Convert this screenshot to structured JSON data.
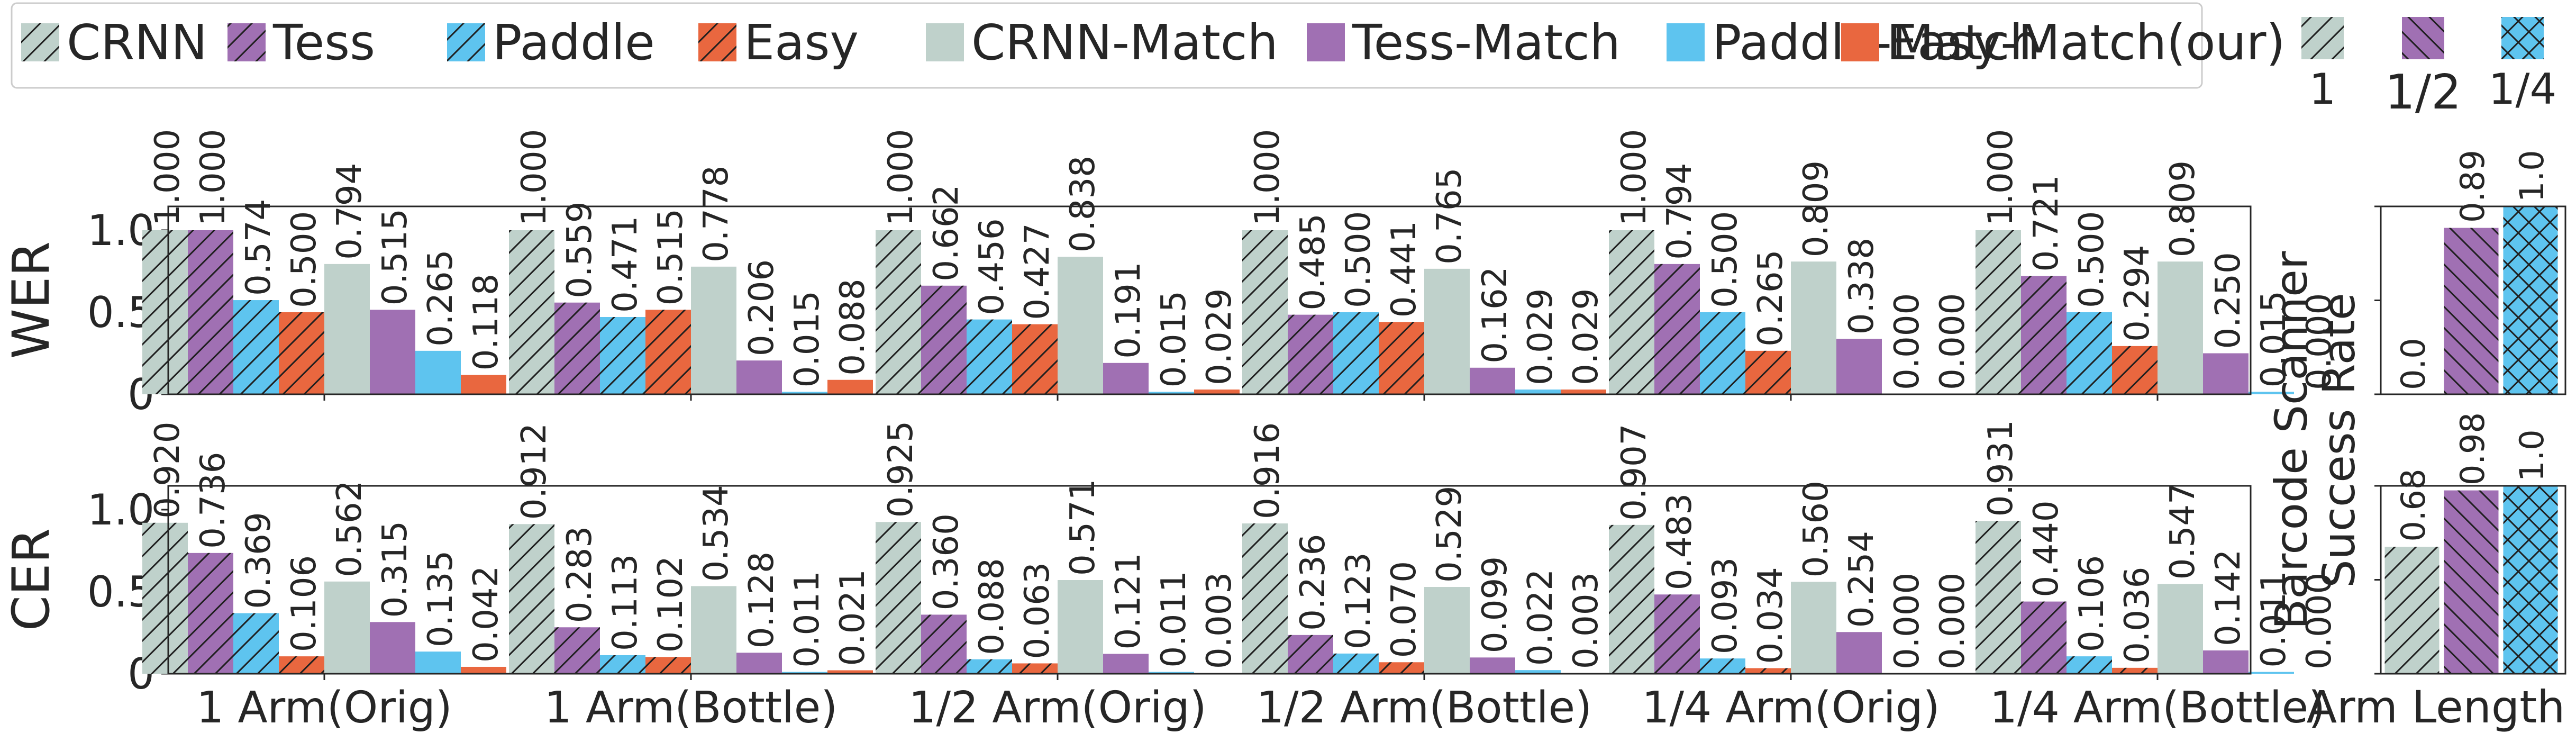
{
  "legend": [
    {
      "name": "CRNN",
      "color": "#bfd1cb",
      "hatch": "fwd"
    },
    {
      "name": "Tess",
      "color": "#a070b3",
      "hatch": "fwd"
    },
    {
      "name": "Paddle",
      "color": "#5ec4ef",
      "hatch": "fwd"
    },
    {
      "name": "Easy",
      "color": "#e9673f",
      "hatch": "fwd"
    },
    {
      "name": "CRNN-Match",
      "color": "#bfd1cb",
      "hatch": "none"
    },
    {
      "name": "Tess-Match",
      "color": "#a070b3",
      "hatch": "none"
    },
    {
      "name": "Paddle-Match",
      "color": "#5ec4ef",
      "hatch": "none"
    },
    {
      "name": "Easy-Match(our)",
      "color": "#e9673f",
      "hatch": "none"
    }
  ],
  "side_legend": [
    {
      "name": "1",
      "color": "#bfd1cb",
      "hatch": "fwd"
    },
    {
      "name": "1/2",
      "color": "#a070b3",
      "hatch": "back"
    },
    {
      "name": "1/4",
      "color": "#5ec4ef",
      "hatch": "cross"
    }
  ],
  "chart_data": [
    {
      "type": "bar",
      "ylabel": "WER",
      "ylim": [
        0,
        1.0
      ],
      "yticks": [
        "0",
        "0.5",
        "1.0"
      ],
      "categories": [
        "1 Arm(Orig)",
        "1 Arm(Bottle)",
        "1/2 Arm(Orig)",
        "1/2 Arm(Bottle)",
        "1/4 Arm(Orig)",
        "1/4 Arm(Bottle)"
      ],
      "series": [
        {
          "name": "CRNN",
          "values": [
            1.0,
            1.0,
            1.0,
            1.0,
            1.0,
            1.0
          ],
          "labels": [
            "1.000",
            "1.000",
            "1.000",
            "1.000",
            "1.000",
            "1.000"
          ]
        },
        {
          "name": "Tess",
          "values": [
            1.0,
            0.559,
            0.662,
            0.485,
            0.794,
            0.721
          ],
          "labels": [
            "1.000",
            "0.559",
            "0.662",
            "0.485",
            "0.794",
            "0.721"
          ]
        },
        {
          "name": "Paddle",
          "values": [
            0.574,
            0.471,
            0.456,
            0.5,
            0.5,
            0.5
          ],
          "labels": [
            "0.574",
            "0.471",
            "0.456",
            "0.500",
            "0.500",
            "0.500"
          ]
        },
        {
          "name": "Easy",
          "values": [
            0.5,
            0.515,
            0.427,
            0.441,
            0.265,
            0.294
          ],
          "labels": [
            "0.500",
            "0.515",
            "0.427",
            "0.441",
            "0.265",
            "0.294"
          ]
        },
        {
          "name": "CRNN-Match",
          "values": [
            0.794,
            0.778,
            0.838,
            0.765,
            0.809,
            0.809
          ],
          "labels": [
            "0.794",
            "0.778",
            "0.838",
            "0.765",
            "0.809",
            "0.809"
          ]
        },
        {
          "name": "Tess-Match",
          "values": [
            0.515,
            0.206,
            0.191,
            0.162,
            0.338,
            0.25
          ],
          "labels": [
            "0.515",
            "0.206",
            "0.191",
            "0.162",
            "0.338",
            "0.250"
          ]
        },
        {
          "name": "Paddle-Match",
          "values": [
            0.265,
            0.015,
            0.015,
            0.029,
            0.0,
            0.015
          ],
          "labels": [
            "0.265",
            "0.015",
            "0.015",
            "0.029",
            "0.000",
            "0.015"
          ]
        },
        {
          "name": "Easy-Match(our)",
          "values": [
            0.118,
            0.088,
            0.029,
            0.029,
            0.0,
            0.0
          ],
          "labels": [
            "0.118",
            "0.088",
            "0.029",
            "0.029",
            "0.000",
            "0.000"
          ]
        }
      ]
    },
    {
      "type": "bar",
      "ylabel": "CER",
      "ylim": [
        0,
        1.0
      ],
      "yticks": [
        "0",
        "0.5",
        "1.0"
      ],
      "categories": [
        "1 Arm(Orig)",
        "1 Arm(Bottle)",
        "1/2 Arm(Orig)",
        "1/2 Arm(Bottle)",
        "1/4 Arm(Orig)",
        "1/4 Arm(Bottle)"
      ],
      "series": [
        {
          "name": "CRNN",
          "values": [
            0.92,
            0.912,
            0.925,
            0.916,
            0.907,
            0.931
          ],
          "labels": [
            "0.920",
            "0.912",
            "0.925",
            "0.916",
            "0.907",
            "0.931"
          ]
        },
        {
          "name": "Tess",
          "values": [
            0.736,
            0.283,
            0.36,
            0.236,
            0.483,
            0.44
          ],
          "labels": [
            "0.736",
            "0.283",
            "0.360",
            "0.236",
            "0.483",
            "0.440"
          ]
        },
        {
          "name": "Paddle",
          "values": [
            0.369,
            0.113,
            0.088,
            0.123,
            0.093,
            0.106
          ],
          "labels": [
            "0.369",
            "0.113",
            "0.088",
            "0.123",
            "0.093",
            "0.106"
          ]
        },
        {
          "name": "Easy",
          "values": [
            0.106,
            0.102,
            0.063,
            0.07,
            0.034,
            0.036
          ],
          "labels": [
            "0.106",
            "0.102",
            "0.063",
            "0.070",
            "0.034",
            "0.036"
          ]
        },
        {
          "name": "CRNN-Match",
          "values": [
            0.562,
            0.534,
            0.571,
            0.529,
            0.56,
            0.547
          ],
          "labels": [
            "0.562",
            "0.534",
            "0.571",
            "0.529",
            "0.560",
            "0.547"
          ]
        },
        {
          "name": "Tess-Match",
          "values": [
            0.315,
            0.128,
            0.121,
            0.099,
            0.254,
            0.142
          ],
          "labels": [
            "0.315",
            "0.128",
            "0.121",
            "0.099",
            "0.254",
            "0.142"
          ]
        },
        {
          "name": "Paddle-Match",
          "values": [
            0.135,
            0.011,
            0.011,
            0.022,
            0.0,
            0.011
          ],
          "labels": [
            "0.135",
            "0.011",
            "0.011",
            "0.022",
            "0.000",
            "0.011"
          ]
        },
        {
          "name": "Easy-Match(our)",
          "values": [
            0.042,
            0.021,
            0.003,
            0.003,
            0.0,
            0.0
          ],
          "labels": [
            "0.042",
            "0.021",
            "0.003",
            "0.003",
            "0.000",
            "0.000"
          ]
        }
      ]
    },
    {
      "type": "bar",
      "ylabel": "Barcode Scanner Success Rate",
      "ylabel_lines": [
        "Barcode Scanner",
        "Success Rate"
      ],
      "xlabel": "Arm Length",
      "ylim": [
        0,
        1.0
      ],
      "categories": [
        "1",
        "1/2",
        "1/4"
      ],
      "panels": [
        {
          "values": [
            0.0,
            0.89,
            1.0
          ],
          "labels": [
            "0.0",
            "0.89",
            "1.0"
          ]
        },
        {
          "values": [
            0.68,
            0.98,
            1.0
          ],
          "labels": [
            "0.68",
            "0.98",
            "1.0"
          ]
        }
      ]
    }
  ]
}
